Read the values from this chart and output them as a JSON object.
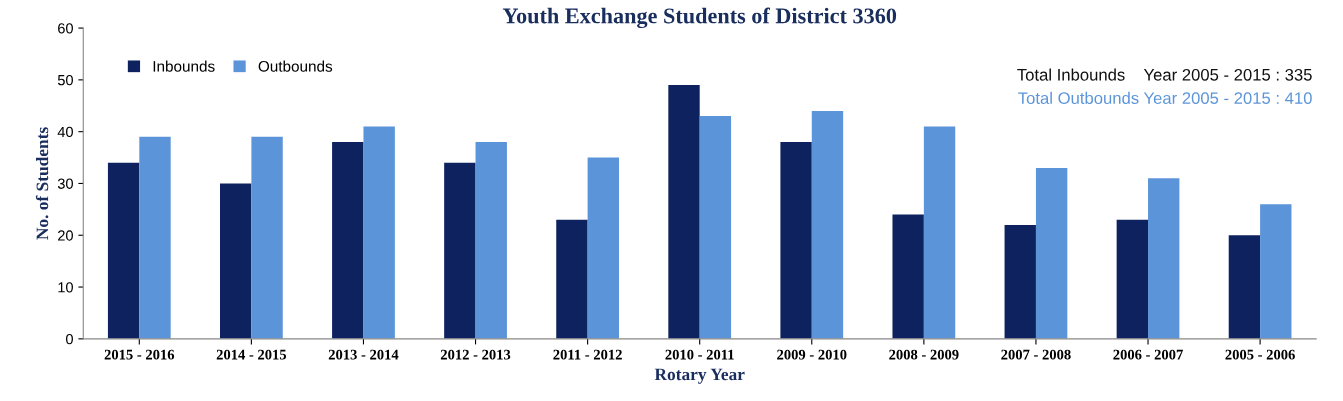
{
  "chart_data": {
    "type": "bar",
    "title": "Youth Exchange Students of District 3360",
    "xlabel": "Rotary Year",
    "ylabel": "No. of Students",
    "categories": [
      "2015 - 2016",
      "2014 - 2015",
      "2013 - 2014",
      "2012 - 2013",
      "2011 - 2012",
      "2010 - 2011",
      "2009 - 2010",
      "2008 - 2009",
      "2007 - 2008",
      "2006 - 2007",
      "2005 - 2006"
    ],
    "series": [
      {
        "name": "Inbounds",
        "color": "#0f2260",
        "values": [
          34,
          30,
          38,
          34,
          23,
          49,
          38,
          24,
          22,
          23,
          20
        ]
      },
      {
        "name": "Outbounds",
        "color": "#5b94d8",
        "values": [
          39,
          39,
          41,
          38,
          35,
          43,
          44,
          41,
          33,
          31,
          26
        ]
      }
    ],
    "ylim": [
      0,
      60
    ],
    "yticks": [
      0,
      10,
      20,
      30,
      40,
      50,
      60
    ],
    "grid": false,
    "legend": "top left",
    "annotations": [
      "Total Inbounds    Year 2005 - 2015 : 335",
      "Total Outbounds Year 2005 - 2015 : 410"
    ]
  }
}
